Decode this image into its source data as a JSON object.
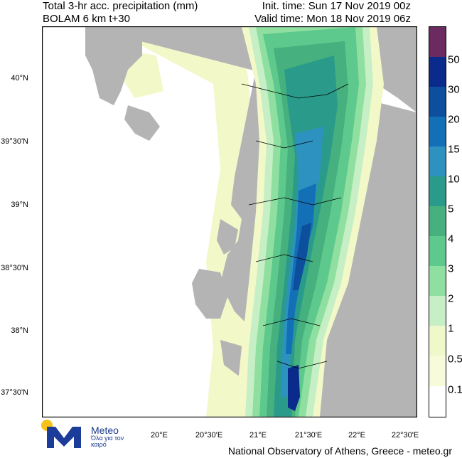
{
  "header": {
    "title_line1": "Total 3-hr acc. precipitation (mm)",
    "title_line2": "BOLAM 6 km t+30",
    "init_time": "Init. time: Sun 17 Nov 2019 00z",
    "valid_time": "Valid time: Mon 18 Nov 2019 06z"
  },
  "map": {
    "lat_labels": [
      "40°N",
      "39°30'N",
      "39°N",
      "38°30'N",
      "38°N",
      "37°30'N"
    ],
    "lon_labels": [
      "20°E",
      "20°30'E",
      "21°E",
      "21°30'E",
      "22°E",
      "22°30'E"
    ],
    "colors": {
      "land": "#b4b4b4",
      "sea_background": "#ffffff",
      "border_lines": "#000000"
    }
  },
  "legend": {
    "labels": [
      "50",
      "30",
      "20",
      "15",
      "10",
      "5",
      "4",
      "3",
      "2",
      "1",
      "0.5",
      "0.1"
    ],
    "colors": [
      "#6b2a60",
      "#0a2a8c",
      "#0d4f9c",
      "#1470b6",
      "#2e92c0",
      "#2a9b8a",
      "#46b07e",
      "#5ec98c",
      "#8fe0a0",
      "#c7efc6",
      "#eef8c9",
      "#f7fbd9",
      "#ffffff"
    ]
  },
  "footer": {
    "credit": "National Observatory of Athens, Greece - meteo.gr"
  },
  "logo": {
    "name": "Meteo",
    "tagline": "Όλα για τον καιρό"
  }
}
